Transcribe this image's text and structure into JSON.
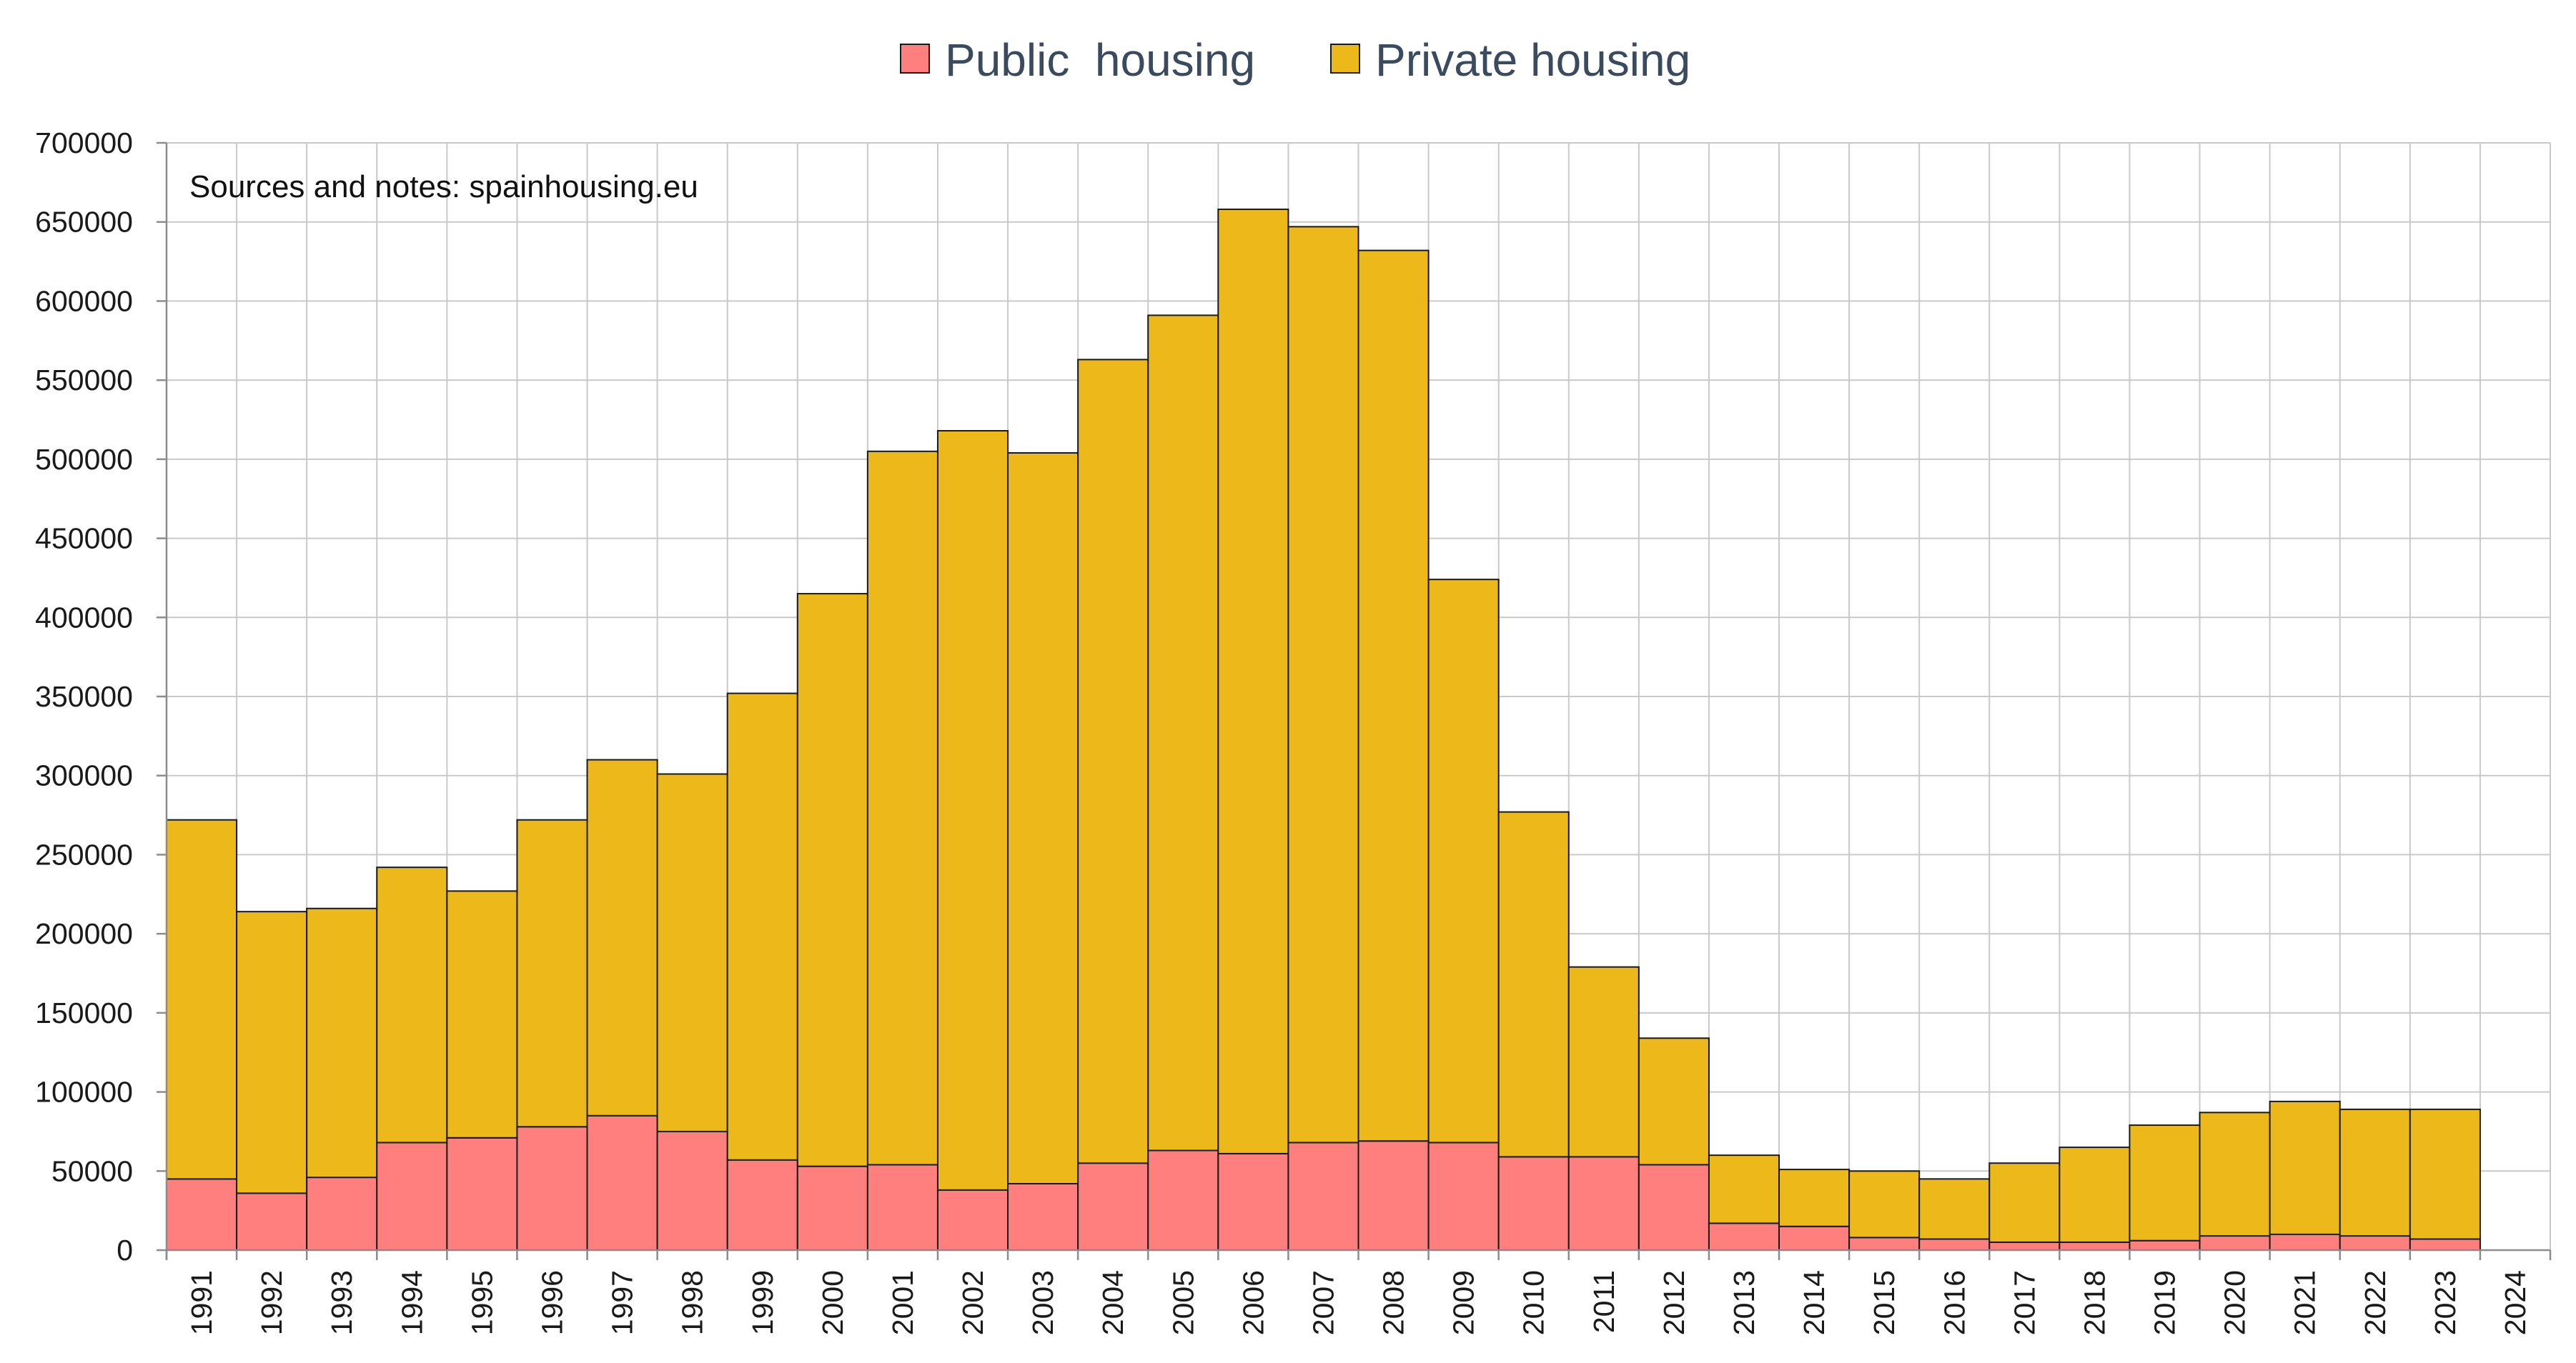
{
  "chart_data": {
    "type": "bar",
    "stacked": true,
    "categories": [
      "1991",
      "1992",
      "1993",
      "1994",
      "1995",
      "1996",
      "1997",
      "1998",
      "1999",
      "2000",
      "2001",
      "2002",
      "2003",
      "2004",
      "2005",
      "2006",
      "2007",
      "2008",
      "2009",
      "2010",
      "2011",
      "2012",
      "2013",
      "2014",
      "2015",
      "2016",
      "2017",
      "2018",
      "2019",
      "2020",
      "2021",
      "2022",
      "2023",
      "2024"
    ],
    "series": [
      {
        "name": "Public  housing",
        "color": "#ff7f7f",
        "values": [
          45000,
          36000,
          46000,
          68000,
          71000,
          78000,
          85000,
          75000,
          57000,
          53000,
          54000,
          38000,
          42000,
          55000,
          63000,
          61000,
          68000,
          69000,
          68000,
          59000,
          59000,
          54000,
          17000,
          15000,
          8000,
          7000,
          5000,
          5000,
          6000,
          9000,
          10000,
          9000,
          7000,
          0
        ]
      },
      {
        "name": "Private housing",
        "color": "#ecb81a",
        "values": [
          227000,
          178000,
          170000,
          174000,
          156000,
          194000,
          225000,
          226000,
          295000,
          362000,
          451000,
          480000,
          462000,
          508000,
          528000,
          597000,
          579000,
          563000,
          356000,
          218000,
          120000,
          80000,
          43000,
          36000,
          42000,
          38000,
          50000,
          60000,
          73000,
          78000,
          84000,
          80000,
          82000,
          0
        ]
      }
    ],
    "ylim": [
      0,
      700000
    ],
    "ytick_step": 50000,
    "grid": true,
    "legend_position": "top-center",
    "annotation": "Sources and notes: spainhousing.eu"
  }
}
